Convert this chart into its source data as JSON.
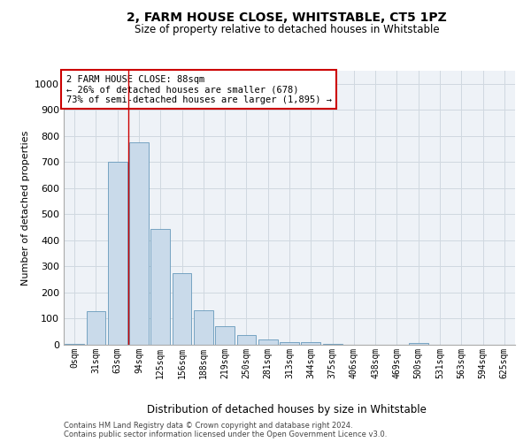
{
  "title": "2, FARM HOUSE CLOSE, WHITSTABLE, CT5 1PZ",
  "subtitle": "Size of property relative to detached houses in Whitstable",
  "xlabel": "Distribution of detached houses by size in Whitstable",
  "ylabel": "Number of detached properties",
  "bar_color": "#c9daea",
  "bar_edge_color": "#6699bb",
  "grid_color": "#d0d8e0",
  "bg_color": "#eef2f7",
  "annotation_box_color": "#cc0000",
  "vline_color": "#cc0000",
  "categories": [
    "0sqm",
    "31sqm",
    "63sqm",
    "94sqm",
    "125sqm",
    "156sqm",
    "188sqm",
    "219sqm",
    "250sqm",
    "281sqm",
    "313sqm",
    "344sqm",
    "375sqm",
    "406sqm",
    "438sqm",
    "469sqm",
    "500sqm",
    "531sqm",
    "563sqm",
    "594sqm",
    "625sqm"
  ],
  "values": [
    5,
    128,
    700,
    775,
    443,
    275,
    133,
    70,
    38,
    22,
    10,
    10,
    5,
    0,
    0,
    0,
    8,
    0,
    0,
    0,
    0
  ],
  "ylim": [
    0,
    1050
  ],
  "yticks": [
    0,
    100,
    200,
    300,
    400,
    500,
    600,
    700,
    800,
    900,
    1000
  ],
  "vline_x": 2.5,
  "annotation_text": "2 FARM HOUSE CLOSE: 88sqm\n← 26% of detached houses are smaller (678)\n73% of semi-detached houses are larger (1,895) →",
  "footer_line1": "Contains HM Land Registry data © Crown copyright and database right 2024.",
  "footer_line2": "Contains public sector information licensed under the Open Government Licence v3.0."
}
